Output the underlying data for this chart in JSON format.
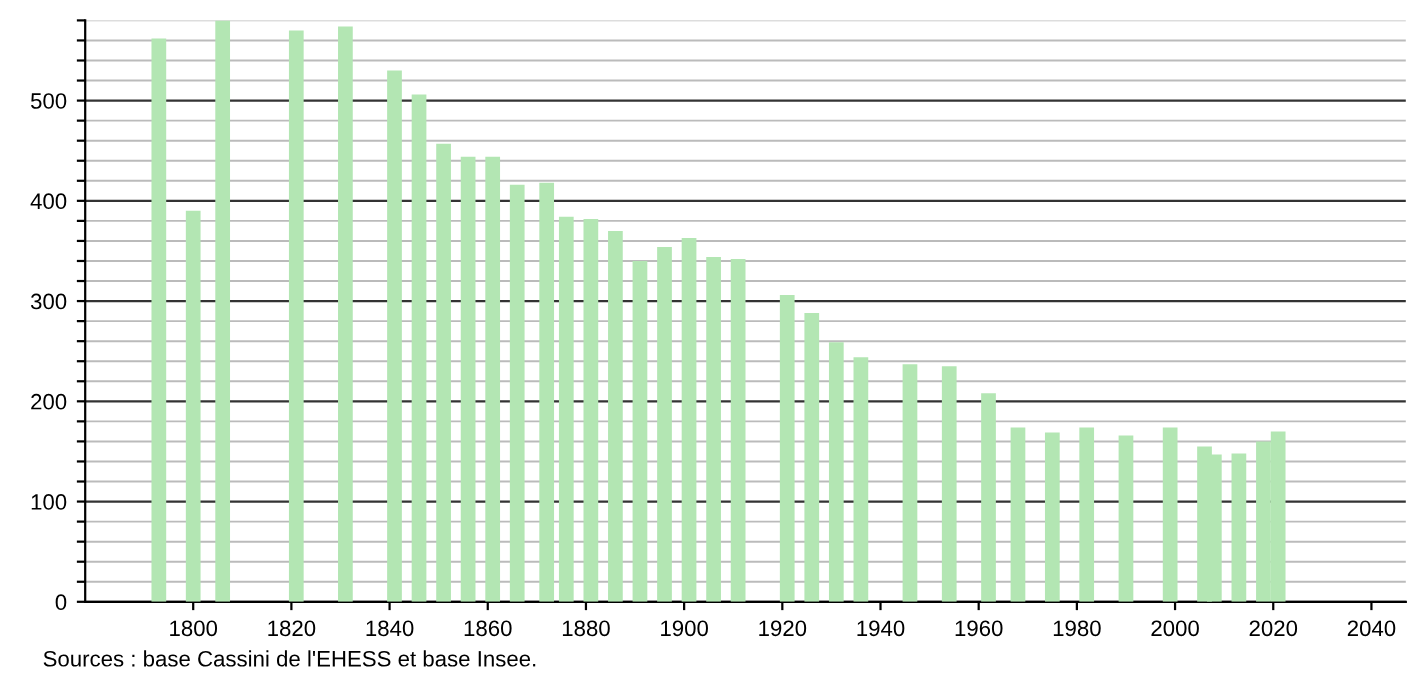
{
  "chart_data": {
    "type": "bar",
    "x": [
      1793,
      1800,
      1806,
      1821,
      1831,
      1841,
      1846,
      1851,
      1856,
      1861,
      1866,
      1872,
      1876,
      1881,
      1886,
      1891,
      1896,
      1901,
      1906,
      1911,
      1921,
      1926,
      1931,
      1936,
      1946,
      1954,
      1962,
      1968,
      1975,
      1982,
      1990,
      1999,
      2006,
      2008,
      2013,
      2018,
      2021
    ],
    "values": [
      562,
      390,
      580,
      570,
      574,
      530,
      506,
      457,
      444,
      444,
      416,
      418,
      384,
      382,
      370,
      340,
      354,
      363,
      344,
      342,
      306,
      288,
      259,
      244,
      237,
      235,
      208,
      174,
      169,
      174,
      166,
      174,
      155,
      147,
      148,
      160,
      170
    ],
    "color": "#b3e6b3",
    "xlim": [
      1778,
      2047
    ],
    "xticks": [
      1800,
      1820,
      1840,
      1860,
      1880,
      1900,
      1920,
      1940,
      1960,
      1980,
      2000,
      2020,
      2040
    ],
    "ylim": [
      0,
      580
    ],
    "yticks": [
      0,
      {
        "value": 20,
        "label": null
      },
      {
        "value": 40,
        "label": null
      },
      {
        "value": 60,
        "label": null
      },
      {
        "value": 80,
        "label": null
      },
      100,
      {
        "value": 120,
        "label": null
      },
      {
        "value": 140,
        "label": null
      },
      {
        "value": 160,
        "label": null
      },
      {
        "value": 180,
        "label": null
      },
      200,
      {
        "value": 220,
        "label": null
      },
      {
        "value": 240,
        "label": null
      },
      {
        "value": 260,
        "label": null
      },
      {
        "value": 280,
        "label": null
      },
      300,
      {
        "value": 320,
        "label": null
      },
      {
        "value": 340,
        "label": null
      },
      {
        "value": 360,
        "label": null
      },
      {
        "value": 380,
        "label": null
      },
      400,
      {
        "value": 420,
        "label": null
      },
      {
        "value": 440,
        "label": null
      },
      {
        "value": 460,
        "label": null
      },
      {
        "value": 480,
        "label": null
      },
      500,
      {
        "value": 520,
        "label": null
      },
      {
        "value": 540,
        "label": null
      },
      {
        "value": 560,
        "label": null
      },
      {
        "value": 580,
        "label": null
      }
    ],
    "grid": "y",
    "annotations": [
      "Sources : base Cassini de l'EHESS et base Insee."
    ]
  }
}
